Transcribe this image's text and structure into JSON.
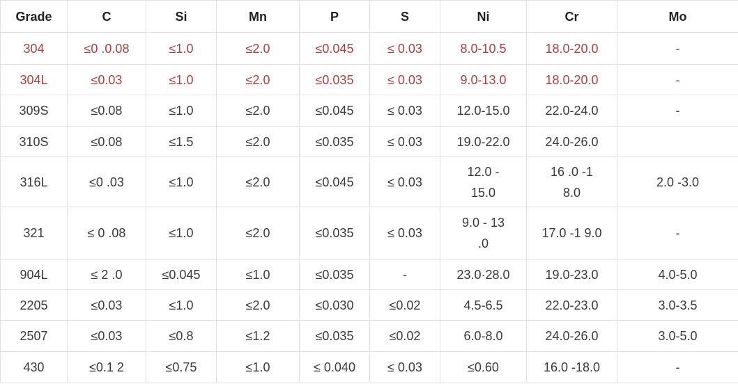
{
  "header": {
    "columns": [
      "Grade",
      "C",
      "Si",
      "Mn",
      "P",
      "S",
      "Ni",
      "Cr",
      "Mo"
    ]
  },
  "table": {
    "rows": [
      [
        "304",
        "≤0 .0.08",
        "≤1.0",
        "≤2.0",
        "≤0.045",
        "≤ 0.03",
        "8.0-10.5",
        "18.0-20.0",
        "-"
      ],
      [
        "304L",
        "≤0.03",
        "≤1.0",
        "≤2.0",
        "≤0.035",
        "≤ 0.03",
        "9.0-13.0",
        "18.0-20.0",
        "-"
      ],
      [
        "309S",
        "≤0.08",
        "≤1.0",
        "≤2.0",
        "≤0.045",
        "≤ 0.03",
        "12.0-15.0",
        "22.0-24.0",
        "-"
      ],
      [
        "310S",
        "≤0.08",
        "≤1.5",
        "≤2.0",
        "≤0.035",
        "≤ 0.03",
        "19.0-22.0",
        "24.0-26.0",
        null
      ],
      [
        "316L",
        "≤0 .03",
        "≤1.0",
        "≤2.0",
        "≤0.045",
        "≤ 0.03",
        "12.0 - 15.0",
        "16 .0 -1 8.0",
        "2.0 -3.0"
      ],
      [
        "321",
        "≤ 0 .08",
        "≤1.0",
        "≤2.0",
        "≤0.035",
        "≤ 0.03",
        "9.0 - 13 .0",
        "17.0 -1 9.0",
        "-"
      ],
      [
        "904L",
        "≤ 2 .0",
        "≤0.045",
        "≤1.0",
        "≤0.035",
        "-",
        "23.0·28.0",
        "19.0-23.0",
        "4.0-5.0"
      ],
      [
        "2205",
        "≤0.03",
        "≤1.0",
        "≤2.0",
        "≤0.030",
        "≤0.02",
        "4.5-6.5",
        "22.0-23.0",
        "3.0-3.5"
      ],
      [
        "2507",
        "≤0.03",
        "≤0.8",
        "≤1.2",
        "≤0.035",
        "≤0.02",
        "6.0-8.0",
        "24.0-26.0",
        "3.0-5.0"
      ],
      [
        "430",
        "≤0.1 2",
        "≤0.75",
        "≤1.0",
        "≤ 0.040",
        "≤ 0.03",
        "≤0.60",
        "16.0 -18.0",
        "-"
      ]
    ]
  }
}
